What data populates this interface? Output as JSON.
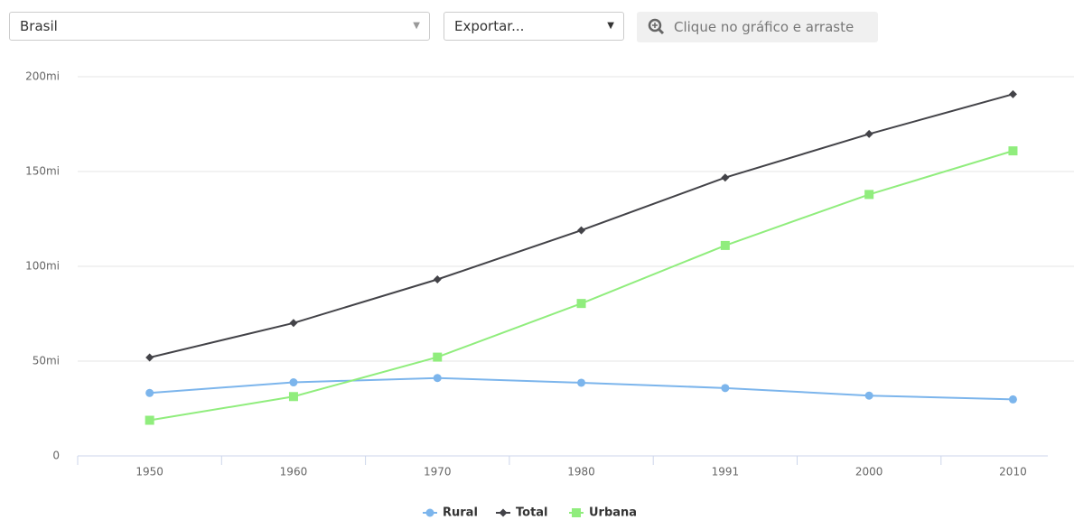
{
  "controls": {
    "region": "Brasil",
    "export": "Exportar...",
    "zoom_hint": "Clique no gráfico e arraste"
  },
  "chart_data": {
    "type": "line",
    "categories": [
      "1950",
      "1960",
      "1970",
      "1980",
      "1991",
      "2000",
      "2010"
    ],
    "series": [
      {
        "name": "Rural",
        "color": "#7cb5ec",
        "marker": "circle",
        "values": [
          33.2,
          38.8,
          41.1,
          38.6,
          35.8,
          31.8,
          29.8
        ]
      },
      {
        "name": "Total",
        "color": "#434348",
        "marker": "diamond",
        "values": [
          51.9,
          70.1,
          93.1,
          119.0,
          146.8,
          169.8,
          190.8
        ]
      },
      {
        "name": "Urbana",
        "color": "#90ed7d",
        "marker": "square",
        "values": [
          18.8,
          31.3,
          52.1,
          80.4,
          111.0,
          137.9,
          160.9
        ]
      }
    ],
    "ylim": [
      0,
      200
    ],
    "yticks": [
      0,
      {
        "value": 50,
        "label": "50mi"
      },
      {
        "value": 100,
        "label": "100mi"
      },
      {
        "value": 150,
        "label": "150mi"
      },
      {
        "value": 200,
        "label": "200mi"
      }
    ],
    "grid": true,
    "legend": "bottom"
  }
}
